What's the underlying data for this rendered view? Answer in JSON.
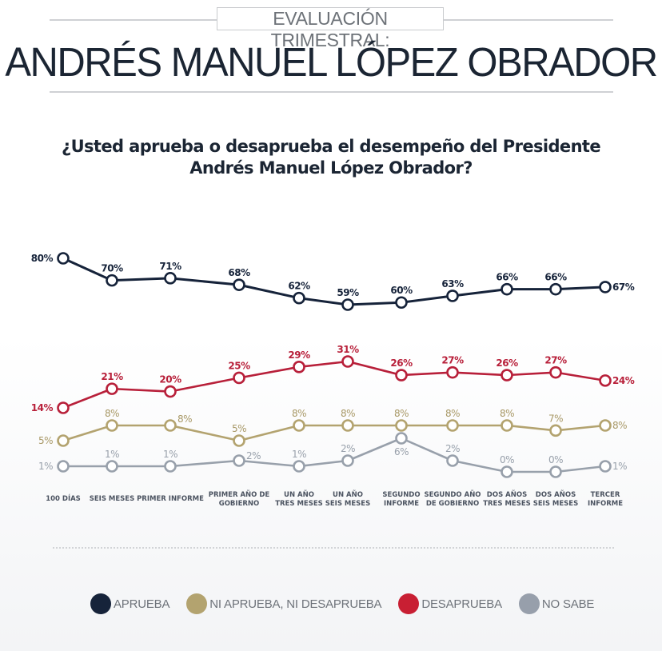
{
  "header": {
    "kicker": "EVALUACIÓN TRIMESTRAL:",
    "title": "ANDRÉS MANUEL LÓPEZ OBRADOR"
  },
  "question": {
    "line1": "¿Usted aprueba o desaprueba el desempeño del Presidente",
    "line2": "Andrés Manuel López Obrador?"
  },
  "chart_data": {
    "type": "line",
    "title": "¿Usted aprueba o desaprueba el desempeño del Presidente Andrés Manuel López Obrador?",
    "xlabel": "",
    "ylabel": "",
    "grid": false,
    "legend_position": "bottom",
    "categories": [
      [
        "100 DÍAS"
      ],
      [
        "SEIS MESES"
      ],
      [
        "PRIMER INFORME"
      ],
      [
        "PRIMER AÑO DE",
        "GOBIERNO"
      ],
      [
        "UN AÑO",
        "TRES MESES"
      ],
      [
        "UN AÑO",
        "SEIS MESES"
      ],
      [
        "SEGUNDO",
        "INFORME"
      ],
      [
        "SEGUNDO AÑO",
        "DE GOBIERNO"
      ],
      [
        "DOS AÑOS",
        "TRES MESES"
      ],
      [
        "DOS AÑOS",
        "SEIS MESES"
      ],
      [
        "TERCER",
        "INFORME"
      ]
    ],
    "series": [
      {
        "key": "aprueba",
        "name": "APRUEBA",
        "color": "#16233a",
        "values": [
          80,
          70,
          71,
          68,
          62,
          59,
          60,
          63,
          66,
          66,
          67
        ]
      },
      {
        "key": "desaprueba",
        "name": "DESAPRUEBA",
        "color": "#b8203a",
        "values": [
          14,
          21,
          20,
          25,
          29,
          31,
          26,
          27,
          26,
          27,
          24
        ]
      },
      {
        "key": "ni",
        "name": "NI APRUEBA, NI DESAPRUEBA",
        "color": "#b3a36f",
        "values": [
          5,
          8,
          8,
          5,
          8,
          8,
          8,
          8,
          8,
          7,
          8
        ]
      },
      {
        "key": "nosabe",
        "name": "NO SABE",
        "color": "#98a0ab",
        "values": [
          1,
          1,
          1,
          2,
          1,
          2,
          6,
          2,
          0,
          0,
          1
        ]
      }
    ],
    "value_suffix": "%"
  },
  "legend": [
    {
      "label": "APRUEBA",
      "color": "#16233a"
    },
    {
      "label": "NI APRUEBA, NI DESAPRUEBA",
      "color": "#b3a36f"
    },
    {
      "label": "DESAPRUEBA",
      "color": "#c81f33"
    },
    {
      "label": "NO SABE",
      "color": "#979fab"
    }
  ]
}
